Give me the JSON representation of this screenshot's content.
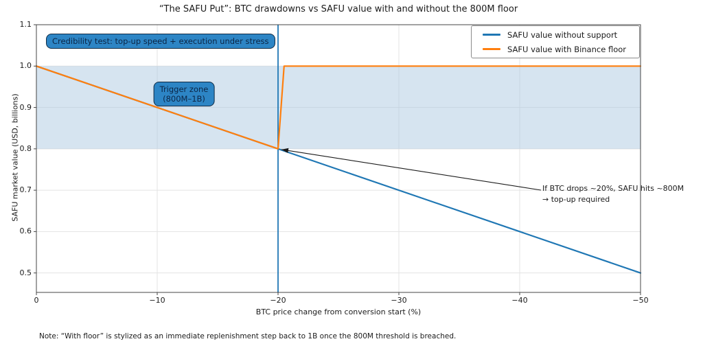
{
  "chart_data": {
    "type": "line",
    "title": "“The SAFU Put”: BTC drawdowns vs SAFU value with and without the 800M floor",
    "xlabel": "BTC price change from conversion start (%)",
    "ylabel": "SAFU market value (USD, billions)",
    "xlim": [
      0,
      -50
    ],
    "ylim": [
      0.453,
      1.1
    ],
    "x_ticks": [
      0,
      -10,
      -20,
      -30,
      -40,
      -50
    ],
    "x_tick_labels": [
      "0",
      "−10",
      "−20",
      "−30",
      "−40",
      "−50"
    ],
    "y_ticks": [
      0.5,
      0.6,
      0.7,
      0.8,
      0.9,
      1.0,
      1.1
    ],
    "y_tick_labels": [
      "0.5",
      "0.6",
      "0.7",
      "0.8",
      "0.9",
      "1.0",
      "1.1"
    ],
    "grid": true,
    "legend_position": "upper right",
    "series": [
      {
        "name": "SAFU value without support",
        "color": "#1f77b4",
        "x": [
          0,
          -50
        ],
        "y": [
          1.0,
          0.5
        ]
      },
      {
        "name": "SAFU value with Binance floor",
        "color": "#ff7f0e",
        "x": [
          0,
          -20,
          -20.5,
          -50
        ],
        "y": [
          1.0,
          0.8,
          1.0,
          1.0
        ]
      }
    ],
    "shaded_band": {
      "y_from": 0.8,
      "y_to": 1.0,
      "color": "#adc9e2",
      "opacity": 0.5
    },
    "vline": {
      "x": -20,
      "color": "#1f77b4"
    },
    "annotations": {
      "credibility": {
        "text": "Credibility test: top-up speed + execution under stress"
      },
      "trigger": {
        "line1": "Trigger zone",
        "line2": "(800M–1B)"
      },
      "breach": {
        "line1": "If BTC drops ~20%, SAFU hits ~800M",
        "line2": "→ top-up required",
        "arrow_target": {
          "x": -20,
          "y": 0.8
        }
      }
    },
    "colors": {
      "grid": "#e3e3e3",
      "spine": "#454545",
      "arrow": "#1a1a1a"
    }
  },
  "footnote": {
    "text": "Note: “With floor” is stylized as an immediate replenishment step back to 1B once the 800M threshold is breached."
  }
}
